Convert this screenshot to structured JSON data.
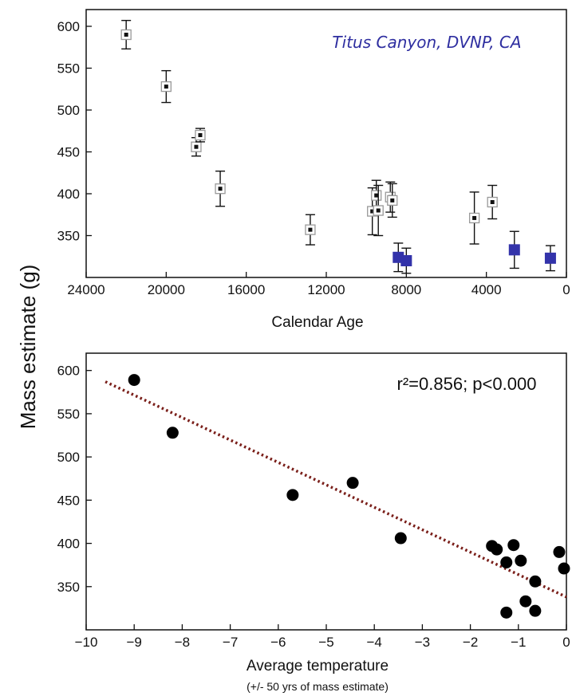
{
  "figure": {
    "shared_ylabel": "Mass estimate (g)"
  },
  "chart_data": [
    {
      "type": "scatter",
      "xlabel": "Calendar Age",
      "ylabel": "Mass estimate (g)",
      "xlim": [
        24000,
        0
      ],
      "ylim": [
        300,
        620
      ],
      "xticks": [
        24000,
        20000,
        16000,
        12000,
        8000,
        4000,
        0
      ],
      "yticks": [
        350,
        400,
        450,
        500,
        550,
        600
      ],
      "annotation": "Titus Canyon, DVNP, CA",
      "colors": {
        "open_marker": "#111111",
        "filled_marker": "#3333aa"
      },
      "series": [
        {
          "style": "open-square",
          "points": [
            {
              "x": 22000,
              "y": 590,
              "err": 17
            },
            {
              "x": 20000,
              "y": 528,
              "err": 19
            },
            {
              "x": 18500,
              "y": 456,
              "err": 11
            },
            {
              "x": 18300,
              "y": 470,
              "err": 8
            },
            {
              "x": 17300,
              "y": 406,
              "err": 21
            },
            {
              "x": 12800,
              "y": 357,
              "err": 18
            },
            {
              "x": 9700,
              "y": 379,
              "err": 28
            },
            {
              "x": 9500,
              "y": 398,
              "err": 18
            },
            {
              "x": 9400,
              "y": 380,
              "err": 30
            },
            {
              "x": 8800,
              "y": 396,
              "err": 18
            },
            {
              "x": 8700,
              "y": 392,
              "err": 20
            },
            {
              "x": 4600,
              "y": 371,
              "err": 31
            },
            {
              "x": 3700,
              "y": 390,
              "err": 20
            }
          ]
        },
        {
          "style": "filled-square",
          "points": [
            {
              "x": 8400,
              "y": 324,
              "err": 17
            },
            {
              "x": 8000,
              "y": 320,
              "err": 15
            },
            {
              "x": 2600,
              "y": 333,
              "err": 22
            },
            {
              "x": 800,
              "y": 323,
              "err": 15
            }
          ]
        }
      ]
    },
    {
      "type": "scatter",
      "xlabel": "Average temperature",
      "xlabel_sub": "(+/- 50 yrs of mass estimate)",
      "ylabel": "Mass estimate (g)",
      "xlim": [
        -10,
        0
      ],
      "ylim": [
        300,
        620
      ],
      "xticks": [
        -10,
        -9,
        -8,
        -7,
        -6,
        -5,
        -4,
        -3,
        -2,
        -1,
        0
      ],
      "yticks": [
        350,
        400,
        450,
        500,
        550,
        600
      ],
      "annotation": "r²=0.856; p<0.000",
      "colors": {
        "points": "#000000",
        "trendline": "#7a1f1a"
      },
      "trendline": {
        "x": [
          -9.6,
          0
        ],
        "y": [
          587,
          338
        ]
      },
      "series": [
        {
          "style": "filled-circle",
          "points": [
            {
              "x": -9.0,
              "y": 589
            },
            {
              "x": -8.2,
              "y": 528
            },
            {
              "x": -5.7,
              "y": 456
            },
            {
              "x": -4.45,
              "y": 470
            },
            {
              "x": -3.45,
              "y": 406
            },
            {
              "x": -1.55,
              "y": 397
            },
            {
              "x": -1.45,
              "y": 393
            },
            {
              "x": -1.25,
              "y": 378
            },
            {
              "x": -1.1,
              "y": 398
            },
            {
              "x": -0.95,
              "y": 380
            },
            {
              "x": -0.85,
              "y": 333
            },
            {
              "x": -0.65,
              "y": 356
            },
            {
              "x": -0.65,
              "y": 322
            },
            {
              "x": -1.25,
              "y": 320
            },
            {
              "x": -0.15,
              "y": 390
            },
            {
              "x": -0.05,
              "y": 371
            }
          ]
        }
      ]
    }
  ]
}
